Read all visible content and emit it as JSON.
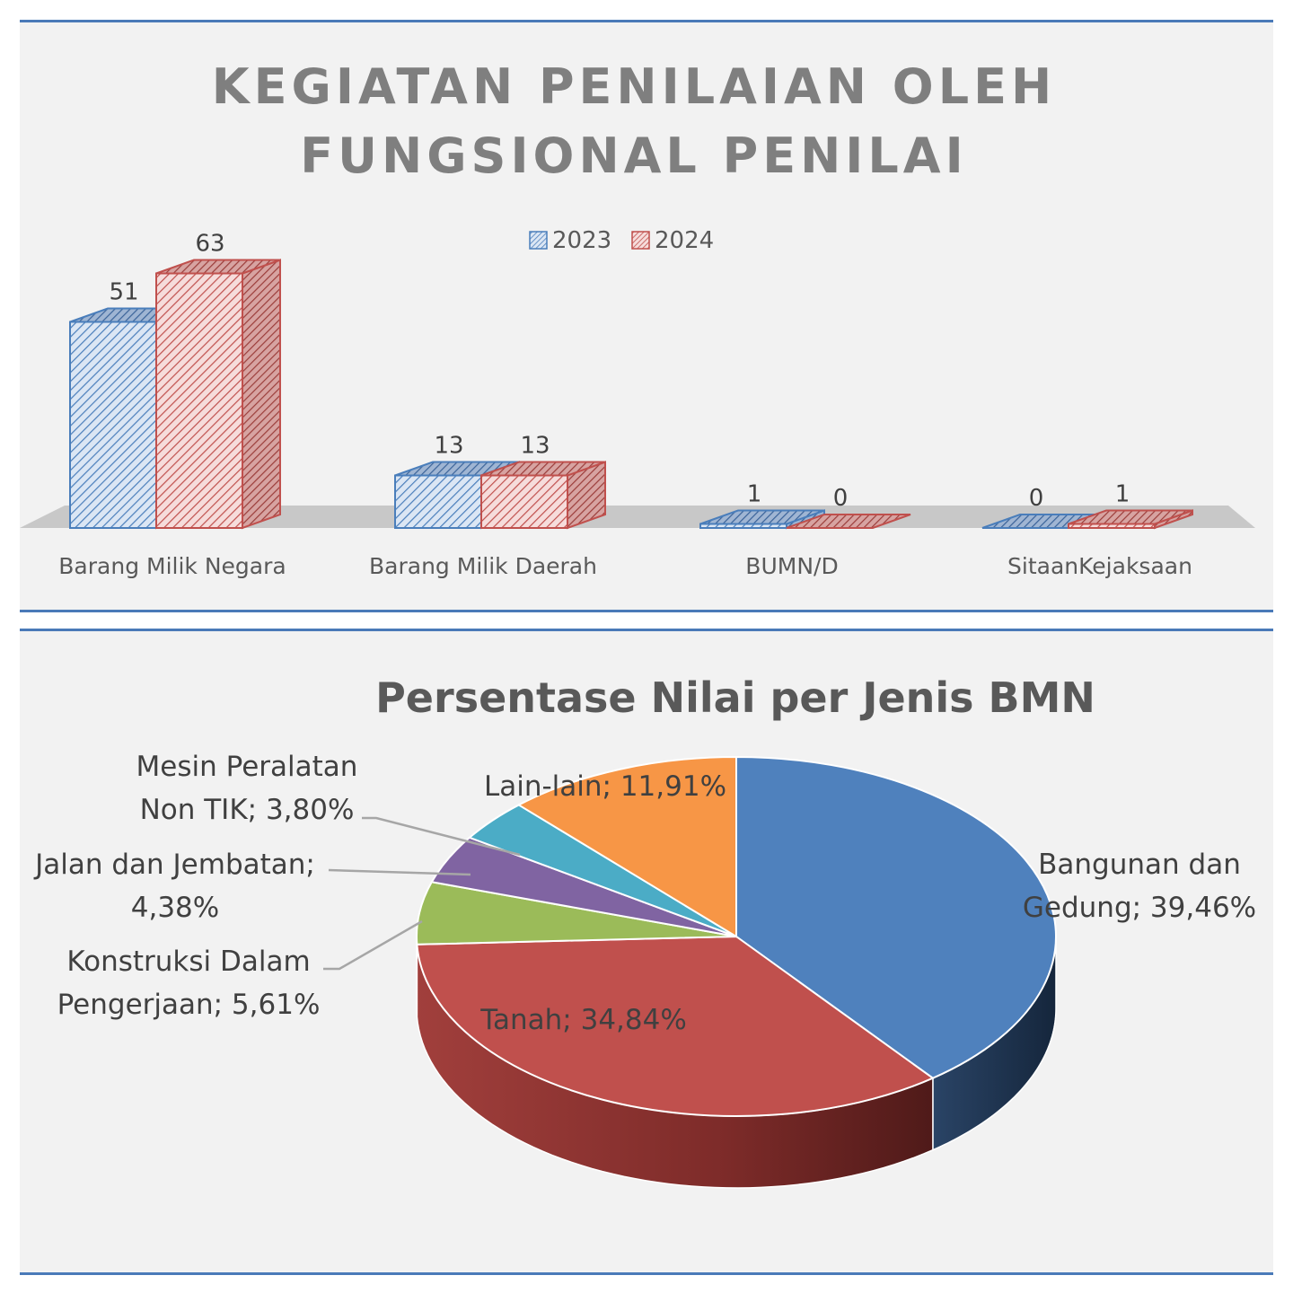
{
  "chart_data": [
    {
      "type": "bar",
      "title_lines": [
        "KEGIATAN PENILAIAN OLEH",
        "FUNGSIONAL PENILAI"
      ],
      "categories": [
        "Barang Milik Negara",
        "Barang Milik Daerah",
        "BUMN/D",
        "SitaanKejaksaan"
      ],
      "series": [
        {
          "name": "2023",
          "values": [
            51,
            13,
            1,
            0
          ],
          "color": "#4a7ebb"
        },
        {
          "name": "2024",
          "values": [
            63,
            13,
            0,
            1
          ],
          "color": "#c0504d"
        }
      ],
      "legend_position": "top",
      "grid": false,
      "style": "3d-column-hatched"
    },
    {
      "type": "pie",
      "title": "Persentase Nilai per Jenis BMN",
      "style": "3d-pie",
      "slices": [
        {
          "label": "Bangunan dan Gedung",
          "value": 39.46,
          "value_text": "39,46%",
          "color": "#4f81bd"
        },
        {
          "label": "Tanah",
          "value": 34.84,
          "value_text": "34,84%",
          "color": "#c0504d"
        },
        {
          "label": "Konstruksi Dalam Pengerjaan",
          "value": 5.61,
          "value_text": "5,61%",
          "color": "#9bbb59"
        },
        {
          "label": "Jalan dan Jembatan",
          "value": 4.38,
          "value_text": "4,38%",
          "color": "#8064a2"
        },
        {
          "label": "Mesin Peralatan Non TIK",
          "value": 3.8,
          "value_text": "3,80%",
          "color": "#4bacc6"
        },
        {
          "label": "Lain-lain",
          "value": 11.91,
          "value_text": "11,91%",
          "color": "#f79646"
        }
      ],
      "label_lines": [
        [
          "Bangunan dan",
          "Gedung; 39,46%"
        ],
        [
          "Tanah; 34,84%"
        ],
        [
          "Konstruksi Dalam",
          "Pengerjaan; 5,61%"
        ],
        [
          "Jalan dan Jembatan;",
          "4,38%"
        ],
        [
          "Mesin Peralatan",
          "Non TIK; 3,80%"
        ],
        [
          "Lain-lain; 11,91%"
        ]
      ]
    }
  ]
}
